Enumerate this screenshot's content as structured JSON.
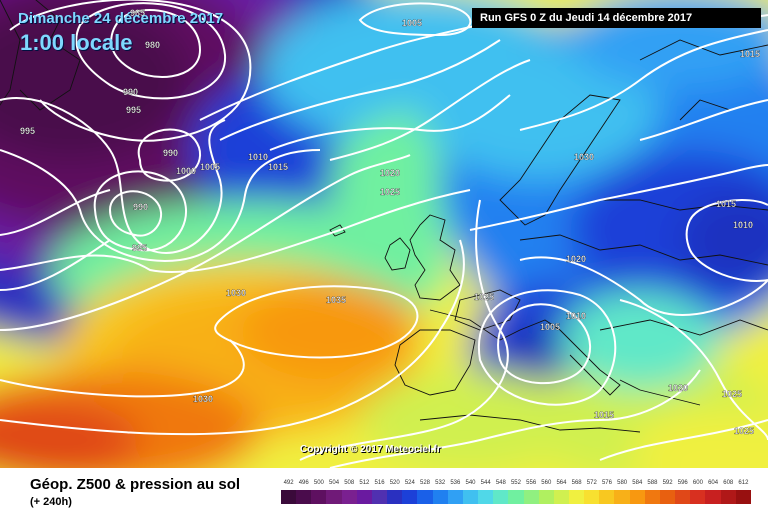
{
  "header": {
    "date": "Dimanche 24 décembre 2017",
    "time": "1:00 locale",
    "run": "Run GFS 0 Z du Jeudi 14 décembre 2017"
  },
  "copyright": "Copyright © 2017 Meteociel.fr",
  "legend": {
    "title": "Géop. Z500 & pression au sol",
    "subtitle": "(+ 240h)",
    "scale_values": [
      "492",
      "496",
      "500",
      "504",
      "508",
      "512",
      "516",
      "520",
      "524",
      "528",
      "532",
      "536",
      "540",
      "544",
      "548",
      "552",
      "556",
      "560",
      "564",
      "568",
      "572",
      "576",
      "580",
      "584",
      "588",
      "592",
      "596",
      "600",
      "604",
      "608",
      "612"
    ],
    "scale_colors": [
      "#3a0a3a",
      "#4a0c4c",
      "#5e1060",
      "#701a78",
      "#7a2090",
      "#6a1aa0",
      "#5030b0",
      "#2a30c0",
      "#1c40d8",
      "#1a60e8",
      "#2080f0",
      "#30a0f4",
      "#40c0f0",
      "#50d8e8",
      "#60e8c8",
      "#70f0a0",
      "#90f080",
      "#b0f060",
      "#d0f050",
      "#f0f040",
      "#f8e030",
      "#f8c820",
      "#f8b018",
      "#f89810",
      "#f07810",
      "#e86010",
      "#e04818",
      "#d83020",
      "#c82020",
      "#b01818",
      "#981010"
    ]
  },
  "isobars": [
    {
      "label": "980"
    },
    {
      "label": "985"
    },
    {
      "label": "990"
    },
    {
      "label": "995"
    },
    {
      "label": "995"
    },
    {
      "label": "990"
    },
    {
      "label": "1000"
    },
    {
      "label": "1005"
    },
    {
      "label": "1010"
    },
    {
      "label": "1015"
    },
    {
      "label": "990"
    },
    {
      "label": "995"
    },
    {
      "label": "1005"
    },
    {
      "label": "1020"
    },
    {
      "label": "1025"
    },
    {
      "label": "1015"
    },
    {
      "label": "1030"
    },
    {
      "label": "1035"
    },
    {
      "label": "1030"
    },
    {
      "label": "1030"
    },
    {
      "label": "1025"
    },
    {
      "label": "1020"
    },
    {
      "label": "1015"
    },
    {
      "label": "1010"
    },
    {
      "label": "1010"
    },
    {
      "label": "1005"
    },
    {
      "label": "1015"
    },
    {
      "label": "1020"
    },
    {
      "label": "1025"
    },
    {
      "label": "1025"
    }
  ]
}
